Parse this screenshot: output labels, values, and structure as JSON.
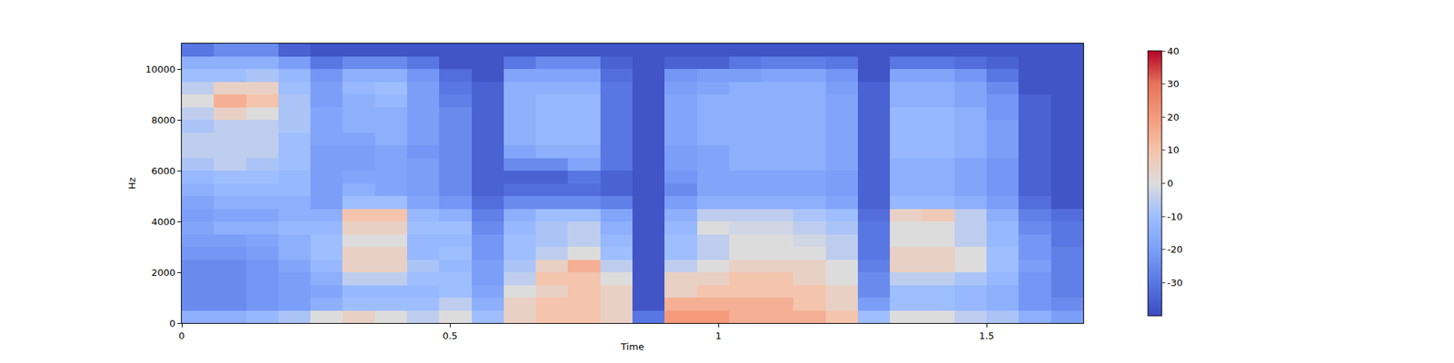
{
  "chart_data": {
    "type": "heatmap",
    "x_label": "Time",
    "y_label": "Hz",
    "xlim": [
      0,
      1.68
    ],
    "xticks": [
      0,
      0.5,
      1,
      1.5
    ],
    "ylim": [
      0,
      11000
    ],
    "yticks": [
      0,
      2000,
      4000,
      6000,
      8000,
      10000
    ],
    "zlim": [
      -40,
      40
    ],
    "zticks": [
      -30,
      -20,
      -10,
      0,
      10,
      20,
      30,
      40
    ],
    "x": [
      0.03,
      0.09,
      0.15,
      0.21,
      0.27,
      0.33,
      0.39,
      0.45,
      0.51,
      0.57,
      0.63,
      0.69,
      0.75,
      0.81,
      0.87,
      0.93,
      0.99,
      1.05,
      1.11,
      1.17,
      1.23,
      1.29,
      1.35,
      1.41,
      1.47,
      1.53,
      1.59,
      1.65
    ],
    "y": [
      250,
      750,
      1250,
      1750,
      2250,
      2750,
      3250,
      3750,
      4250,
      4750,
      5250,
      5750,
      6250,
      6750,
      7250,
      7750,
      8250,
      8750,
      9250,
      9750,
      10250,
      10750
    ],
    "z_by_time": [
      [
        -15,
        -25,
        -25,
        -25,
        -25,
        -22,
        -20,
        -18,
        -20,
        -18,
        -15,
        -12,
        -8,
        -5,
        -5,
        -8,
        -5,
        0,
        -5,
        -10,
        -15,
        -30
      ],
      [
        -15,
        -25,
        -25,
        -25,
        -25,
        -22,
        -20,
        -15,
        -18,
        -15,
        -12,
        -10,
        -5,
        -5,
        -5,
        -5,
        5,
        15,
        5,
        -10,
        -15,
        -25
      ],
      [
        -12,
        -22,
        -22,
        -22,
        -22,
        -20,
        -18,
        -15,
        -18,
        -15,
        -12,
        -10,
        -8,
        -5,
        -5,
        -5,
        0,
        10,
        5,
        -8,
        -15,
        -25
      ],
      [
        -8,
        -20,
        -20,
        -20,
        -18,
        -15,
        -15,
        -12,
        -15,
        -15,
        -12,
        -12,
        -10,
        -10,
        -10,
        -8,
        -8,
        -8,
        -10,
        -12,
        -20,
        -35
      ],
      [
        0,
        -15,
        -18,
        -15,
        -12,
        -10,
        -10,
        -12,
        -15,
        -20,
        -20,
        -20,
        -20,
        -20,
        -18,
        -18,
        -18,
        -20,
        -20,
        -22,
        -30,
        -38
      ],
      [
        5,
        -10,
        -12,
        -5,
        5,
        5,
        0,
        5,
        10,
        -10,
        -15,
        -18,
        -20,
        -20,
        -18,
        -15,
        -15,
        -15,
        -12,
        -15,
        -25,
        -38
      ],
      [
        0,
        -10,
        -12,
        -5,
        5,
        5,
        0,
        5,
        10,
        -10,
        -18,
        -18,
        -18,
        -18,
        -15,
        -15,
        -15,
        -12,
        -10,
        -15,
        -25,
        -38
      ],
      [
        -5,
        -10,
        -12,
        -10,
        -8,
        -12,
        -12,
        -10,
        -12,
        -18,
        -20,
        -20,
        -20,
        -22,
        -20,
        -20,
        -20,
        -20,
        -20,
        -22,
        -30,
        -38
      ],
      [
        0,
        -5,
        -10,
        -10,
        -12,
        -10,
        -12,
        -10,
        -15,
        -22,
        -25,
        -25,
        -25,
        -25,
        -25,
        -25,
        -25,
        -28,
        -30,
        -32,
        -38,
        -38
      ],
      [
        -10,
        -15,
        -18,
        -20,
        -20,
        -22,
        -22,
        -25,
        -28,
        -32,
        -35,
        -35,
        -35,
        -35,
        -35,
        -35,
        -35,
        -35,
        -35,
        -38,
        -38,
        -38
      ],
      [
        5,
        5,
        0,
        -5,
        -8,
        -10,
        -10,
        -12,
        -15,
        -25,
        -32,
        -35,
        -25,
        -18,
        -15,
        -15,
        -15,
        -15,
        -15,
        -18,
        -30,
        -38
      ],
      [
        10,
        10,
        5,
        10,
        5,
        -5,
        -8,
        -8,
        -10,
        -25,
        -32,
        -35,
        -25,
        -15,
        -12,
        -12,
        -12,
        -12,
        -15,
        -18,
        -25,
        -38
      ],
      [
        10,
        10,
        10,
        10,
        15,
        0,
        -5,
        -5,
        -10,
        -25,
        -32,
        -30,
        -18,
        -15,
        -12,
        -12,
        -12,
        -12,
        -15,
        -18,
        -25,
        -38
      ],
      [
        5,
        5,
        5,
        0,
        -5,
        -10,
        -12,
        -15,
        -18,
        -28,
        -35,
        -35,
        -30,
        -30,
        -30,
        -30,
        -30,
        -30,
        -30,
        -32,
        -35,
        -38
      ],
      [
        -30,
        -38,
        -38,
        -38,
        -38,
        -38,
        -38,
        -38,
        -38,
        -38,
        -38,
        -38,
        -38,
        -38,
        -38,
        -38,
        -38,
        -38,
        -38,
        -38,
        -38,
        -38
      ],
      [
        20,
        15,
        5,
        5,
        -5,
        -10,
        -10,
        -12,
        -15,
        -20,
        -25,
        -22,
        -20,
        -20,
        -18,
        -18,
        -18,
        -18,
        -20,
        -22,
        -35,
        -38
      ],
      [
        20,
        15,
        10,
        5,
        0,
        -5,
        -5,
        0,
        -5,
        -15,
        -18,
        -18,
        -18,
        -18,
        -15,
        -15,
        -15,
        -15,
        -18,
        -20,
        -35,
        -38
      ],
      [
        15,
        15,
        10,
        10,
        5,
        0,
        0,
        -2,
        -5,
        -15,
        -18,
        -18,
        -15,
        -15,
        -15,
        -15,
        -15,
        -15,
        -15,
        -20,
        -30,
        -38
      ],
      [
        15,
        15,
        10,
        10,
        5,
        0,
        0,
        -2,
        -5,
        -15,
        -18,
        -18,
        -15,
        -15,
        -15,
        -15,
        -15,
        -15,
        -15,
        -18,
        -28,
        -38
      ],
      [
        15,
        10,
        10,
        5,
        5,
        0,
        -2,
        -5,
        -8,
        -15,
        -18,
        -18,
        -15,
        -15,
        -15,
        -15,
        -15,
        -15,
        -15,
        -18,
        -28,
        -38
      ],
      [
        10,
        5,
        5,
        0,
        0,
        -5,
        -5,
        -8,
        -10,
        -18,
        -20,
        -20,
        -18,
        -18,
        -18,
        -18,
        -18,
        -18,
        -20,
        -22,
        -30,
        -38
      ],
      [
        -10,
        -20,
        -25,
        -25,
        -28,
        -30,
        -30,
        -30,
        -32,
        -35,
        -35,
        -35,
        -35,
        -35,
        -35,
        -35,
        -35,
        -35,
        -35,
        -38,
        -38,
        -38
      ],
      [
        0,
        -10,
        -10,
        -5,
        5,
        5,
        0,
        0,
        5,
        -12,
        -15,
        -15,
        -15,
        -12,
        -12,
        -12,
        -12,
        -15,
        -15,
        -18,
        -30,
        -38
      ],
      [
        0,
        -10,
        -10,
        -5,
        5,
        5,
        0,
        0,
        8,
        -12,
        -15,
        -15,
        -15,
        -12,
        -12,
        -12,
        -12,
        -15,
        -15,
        -18,
        -30,
        -38
      ],
      [
        -5,
        -12,
        -12,
        -8,
        0,
        0,
        -5,
        -5,
        -5,
        -15,
        -18,
        -18,
        -18,
        -15,
        -15,
        -15,
        -15,
        -18,
        -18,
        -22,
        -32,
        -38
      ],
      [
        -8,
        -15,
        -15,
        -12,
        -10,
        -10,
        -12,
        -12,
        -15,
        -20,
        -22,
        -22,
        -22,
        -20,
        -20,
        -20,
        -22,
        -22,
        -25,
        -30,
        -35,
        -38
      ],
      [
        -15,
        -22,
        -22,
        -22,
        -20,
        -22,
        -22,
        -25,
        -28,
        -32,
        -35,
        -35,
        -35,
        -35,
        -35,
        -35,
        -35,
        -35,
        -38,
        -38,
        -38,
        -38
      ],
      [
        -20,
        -25,
        -28,
        -28,
        -28,
        -28,
        -30,
        -30,
        -32,
        -38,
        -38,
        -38,
        -38,
        -38,
        -38,
        -38,
        -38,
        -38,
        -38,
        -38,
        -38,
        -38
      ]
    ]
  }
}
